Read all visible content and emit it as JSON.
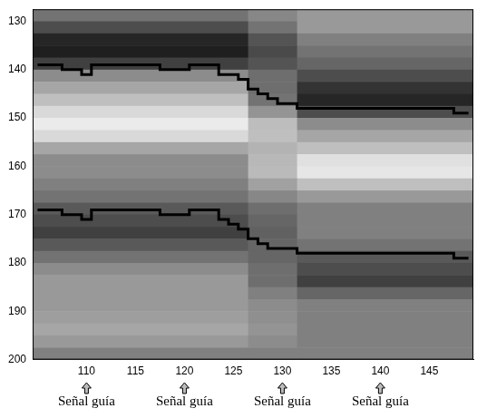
{
  "chart_data": {
    "type": "line",
    "xlim": [
      104.5,
      149.5
    ],
    "xticks": [
      110,
      115,
      120,
      125,
      130,
      135,
      140,
      145
    ],
    "ylim": [
      200,
      127.5
    ],
    "yticks": [
      130,
      140,
      150,
      160,
      170,
      180,
      190,
      200
    ],
    "grid": false,
    "x": [
      105,
      106,
      107,
      108,
      109,
      110,
      111,
      112,
      113,
      114,
      115,
      116,
      117,
      118,
      119,
      120,
      121,
      122,
      123,
      124,
      125,
      126,
      127,
      128,
      129,
      130,
      131,
      132,
      133,
      134,
      135,
      136,
      137,
      138,
      139,
      140,
      141,
      142,
      143,
      144,
      145,
      146,
      147,
      148,
      149
    ],
    "series": [
      {
        "color": "#000000",
        "line_style": "solid",
        "values": [
          139,
          139,
          139,
          140,
          140,
          141,
          139,
          139,
          139,
          139,
          139,
          139,
          139,
          140,
          140,
          140,
          139,
          139,
          139,
          141,
          141,
          142,
          144,
          145,
          146,
          147,
          147,
          148,
          148,
          148,
          148,
          148,
          148,
          148,
          148,
          148,
          148,
          148,
          148,
          148,
          148,
          148,
          148,
          149,
          149
        ]
      },
      {
        "color": "#000000",
        "line_style": "solid",
        "values": [
          169,
          169,
          169,
          170,
          170,
          171,
          169,
          169,
          169,
          169,
          169,
          169,
          169,
          170,
          170,
          170,
          169,
          169,
          169,
          171,
          172,
          173,
          175,
          176,
          177,
          177,
          177,
          178,
          178,
          178,
          178,
          178,
          178,
          178,
          178,
          178,
          178,
          178,
          178,
          178,
          178,
          178,
          178,
          179,
          179
        ]
      }
    ],
    "heatmap": {
      "x_edges": [
        104.5,
        126.5,
        131.5,
        149.5
      ],
      "y_edges": [
        127.5,
        130,
        132.5,
        135,
        137.5,
        140,
        142.5,
        145,
        147.5,
        150,
        152.5,
        155,
        157.5,
        160,
        162.5,
        165,
        167.5,
        170,
        172.5,
        175,
        177.5,
        180,
        182.5,
        185,
        187.5,
        190,
        192.5,
        195,
        197.5,
        200
      ],
      "cells": [
        [
          0.45,
          0.53,
          0.6
        ],
        [
          0.3,
          0.45,
          0.6
        ],
        [
          0.15,
          0.33,
          0.5
        ],
        [
          0.12,
          0.29,
          0.45
        ],
        [
          0.25,
          0.33,
          0.4
        ],
        [
          0.55,
          0.43,
          0.3
        ],
        [
          0.65,
          0.43,
          0.2
        ],
        [
          0.75,
          0.45,
          0.15
        ],
        [
          0.85,
          0.58,
          0.3
        ],
        [
          0.92,
          0.74,
          0.55
        ],
        [
          0.85,
          0.75,
          0.65
        ],
        [
          0.65,
          0.7,
          0.75
        ],
        [
          0.55,
          0.72,
          0.88
        ],
        [
          0.55,
          0.73,
          0.9
        ],
        [
          0.5,
          0.63,
          0.75
        ],
        [
          0.45,
          0.53,
          0.6
        ],
        [
          0.35,
          0.43,
          0.5
        ],
        [
          0.3,
          0.4,
          0.5
        ],
        [
          0.25,
          0.38,
          0.5
        ],
        [
          0.35,
          0.4,
          0.45
        ],
        [
          0.45,
          0.4,
          0.35
        ],
        [
          0.55,
          0.43,
          0.3
        ],
        [
          0.6,
          0.43,
          0.25
        ],
        [
          0.6,
          0.5,
          0.4
        ],
        [
          0.6,
          0.55,
          0.5
        ],
        [
          0.62,
          0.56,
          0.5
        ],
        [
          0.65,
          0.58,
          0.5
        ],
        [
          0.6,
          0.55,
          0.5
        ],
        [
          0.5,
          0.5,
          0.5
        ]
      ]
    },
    "annotations": [
      {
        "x": 110,
        "text": "Señal guía"
      },
      {
        "x": 120,
        "text": "Señal guía"
      },
      {
        "x": 130,
        "text": "Señal guía"
      },
      {
        "x": 140,
        "text": "Señal guía"
      }
    ]
  }
}
